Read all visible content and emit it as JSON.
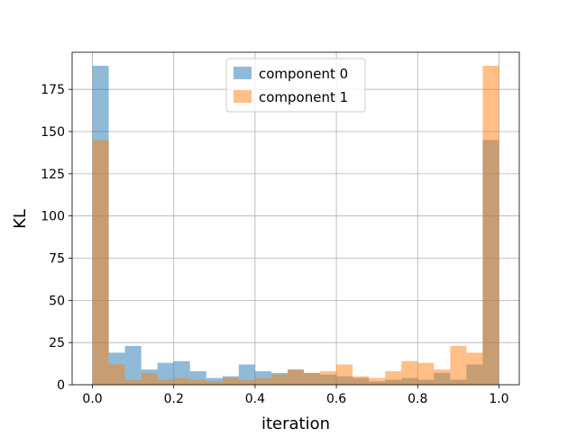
{
  "chart_data": {
    "type": "bar",
    "xlabel": "iteration",
    "ylabel": "KL",
    "xlim": [
      -0.05,
      1.05
    ],
    "ylim": [
      0,
      197
    ],
    "xticks": [
      0.0,
      0.2,
      0.4,
      0.6,
      0.8,
      1.0
    ],
    "xtick_labels": [
      "0.0",
      "0.2",
      "0.4",
      "0.6",
      "0.8",
      "1.0"
    ],
    "yticks": [
      0,
      25,
      50,
      75,
      100,
      125,
      150,
      175
    ],
    "ytick_labels": [
      "0",
      "25",
      "50",
      "75",
      "100",
      "125",
      "150",
      "175"
    ],
    "grid": true,
    "legend_position": "top-center",
    "bin_edges": [
      0.0,
      0.04,
      0.08,
      0.12,
      0.16,
      0.2,
      0.24,
      0.28,
      0.32,
      0.36,
      0.4,
      0.44,
      0.48,
      0.52,
      0.56,
      0.6,
      0.64,
      0.68,
      0.72,
      0.76,
      0.8,
      0.84,
      0.88,
      0.92,
      0.96,
      1.0
    ],
    "series": [
      {
        "name": "component 0",
        "color": "#1f77b4",
        "alpha": 0.5,
        "values": [
          189,
          19,
          23,
          9,
          13,
          14,
          8,
          4,
          5,
          12,
          8,
          7,
          9,
          7,
          6,
          5,
          4,
          2,
          3,
          4,
          3,
          7,
          3,
          12,
          145
        ]
      },
      {
        "name": "component 1",
        "color": "#ff7f0e",
        "alpha": 0.5,
        "values": [
          145,
          12,
          3,
          7,
          3,
          4,
          3,
          2,
          4,
          3,
          4,
          6,
          9,
          7,
          8,
          12,
          5,
          4,
          8,
          14,
          13,
          9,
          23,
          19,
          189
        ]
      }
    ]
  }
}
